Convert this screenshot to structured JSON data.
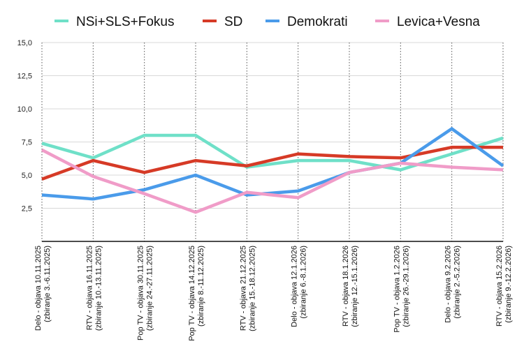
{
  "chart_data": {
    "type": "line",
    "title": "",
    "xlabel": "",
    "ylabel": "",
    "ylim": [
      0,
      15
    ],
    "yticks": [
      "2,5",
      "5,0",
      "7,5",
      "10,0",
      "12,5",
      "15,0"
    ],
    "ytick_values": [
      2.5,
      5,
      7.5,
      10,
      12.5,
      15
    ],
    "grid": true,
    "legend_position": "top",
    "categories": [
      [
        "Delo - objava 10.11.2025",
        "(zbiranje 3.-6.11.2025)"
      ],
      [
        "RTV - objava 16.11.2025",
        "(zbiranje 10.-13.11.2025)"
      ],
      [
        "Pop TV - objava 30.11.2025",
        "(zbiranje 24.-27.11.2025)"
      ],
      [
        "Pop TV - objava 14.12.2025",
        "(zbiranje 8.-11.12.2025)"
      ],
      [
        "RTV - objava 21.12.2025",
        "(zbiranje 15.-18.12.2025)"
      ],
      [
        "Delo - objava 12.1.2026",
        "(zbiranje 6.-8.1.2026)"
      ],
      [
        "RTV - objava 18.1.2026",
        "(zbiranje 12.-15.1.2026)"
      ],
      [
        "Pop TV - objava 1.2.2026",
        "(zbiranje 26.-29.1.2026)"
      ],
      [
        "Delo - objava 9.2.2026",
        "(zbiranje 2.-5.2.2026)"
      ],
      [
        "RTV - objava 15.2.2026",
        "(zbiranje 9.-12.2.2026)"
      ]
    ],
    "series": [
      {
        "name": "NSi+SLS+Fokus",
        "color": "#6FE0C8",
        "values": [
          7.4,
          6.3,
          8.0,
          8.0,
          5.6,
          6.1,
          6.1,
          5.4,
          6.6,
          7.8
        ]
      },
      {
        "name": "SD",
        "color": "#D63A26",
        "values": [
          4.7,
          6.1,
          5.2,
          6.1,
          5.7,
          6.6,
          6.4,
          6.3,
          7.1,
          7.1
        ]
      },
      {
        "name": "Demokrati",
        "color": "#4A9BEA",
        "values": [
          3.5,
          3.2,
          3.9,
          5.0,
          3.5,
          3.8,
          5.2,
          5.9,
          8.5,
          5.7
        ]
      },
      {
        "name": "Levica+Vesna",
        "color": "#F09CC8",
        "values": [
          6.9,
          4.9,
          3.6,
          2.2,
          3.7,
          3.3,
          5.2,
          5.9,
          5.6,
          5.4
        ]
      }
    ]
  }
}
